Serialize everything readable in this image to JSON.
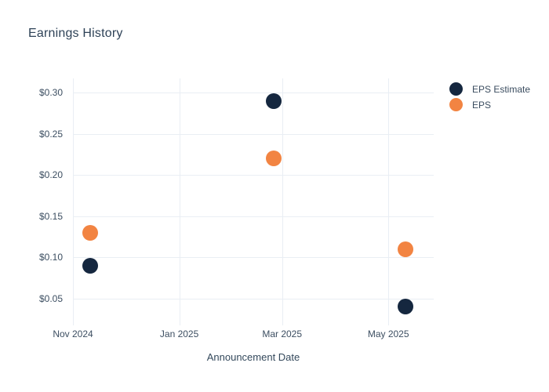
{
  "chart_data": {
    "type": "scatter",
    "title": "Earnings History",
    "xlabel": "Announcement Date",
    "ylabel": "",
    "x_range": [
      "2024-11-01",
      "2025-05-27"
    ],
    "y_range": [
      0.0175,
      0.3175
    ],
    "grid": true,
    "legend_position": "top-right",
    "marker_size_px": 20,
    "x_ticks": [
      {
        "date": "2024-11-01",
        "label": "Nov 2024"
      },
      {
        "date": "2025-01-01",
        "label": "Jan 2025"
      },
      {
        "date": "2025-03-01",
        "label": "Mar 2025"
      },
      {
        "date": "2025-05-01",
        "label": "May 2025"
      }
    ],
    "y_ticks": [
      {
        "value": 0.3,
        "label": "$0.30"
      },
      {
        "value": 0.25,
        "label": "$0.25"
      },
      {
        "value": 0.2,
        "label": "$0.20"
      },
      {
        "value": 0.15,
        "label": "$0.15"
      },
      {
        "value": 0.1,
        "label": "$0.10"
      },
      {
        "value": 0.05,
        "label": "$0.05"
      }
    ],
    "series": [
      {
        "name": "EPS Estimate",
        "color": "#15273f",
        "points": [
          {
            "x": "2024-11-11",
            "y": 0.09
          },
          {
            "x": "2025-02-24",
            "y": 0.29
          },
          {
            "x": "2025-05-11",
            "y": 0.04
          }
        ]
      },
      {
        "name": "EPS",
        "color": "#f28442",
        "points": [
          {
            "x": "2024-11-11",
            "y": 0.13
          },
          {
            "x": "2025-02-24",
            "y": 0.22
          },
          {
            "x": "2025-05-11",
            "y": 0.11
          }
        ]
      }
    ]
  },
  "colors": {
    "title_text": "#2e4257",
    "tick_text": "#3c4e61",
    "gridline": "#e9eef4",
    "background": "#ffffff"
  }
}
